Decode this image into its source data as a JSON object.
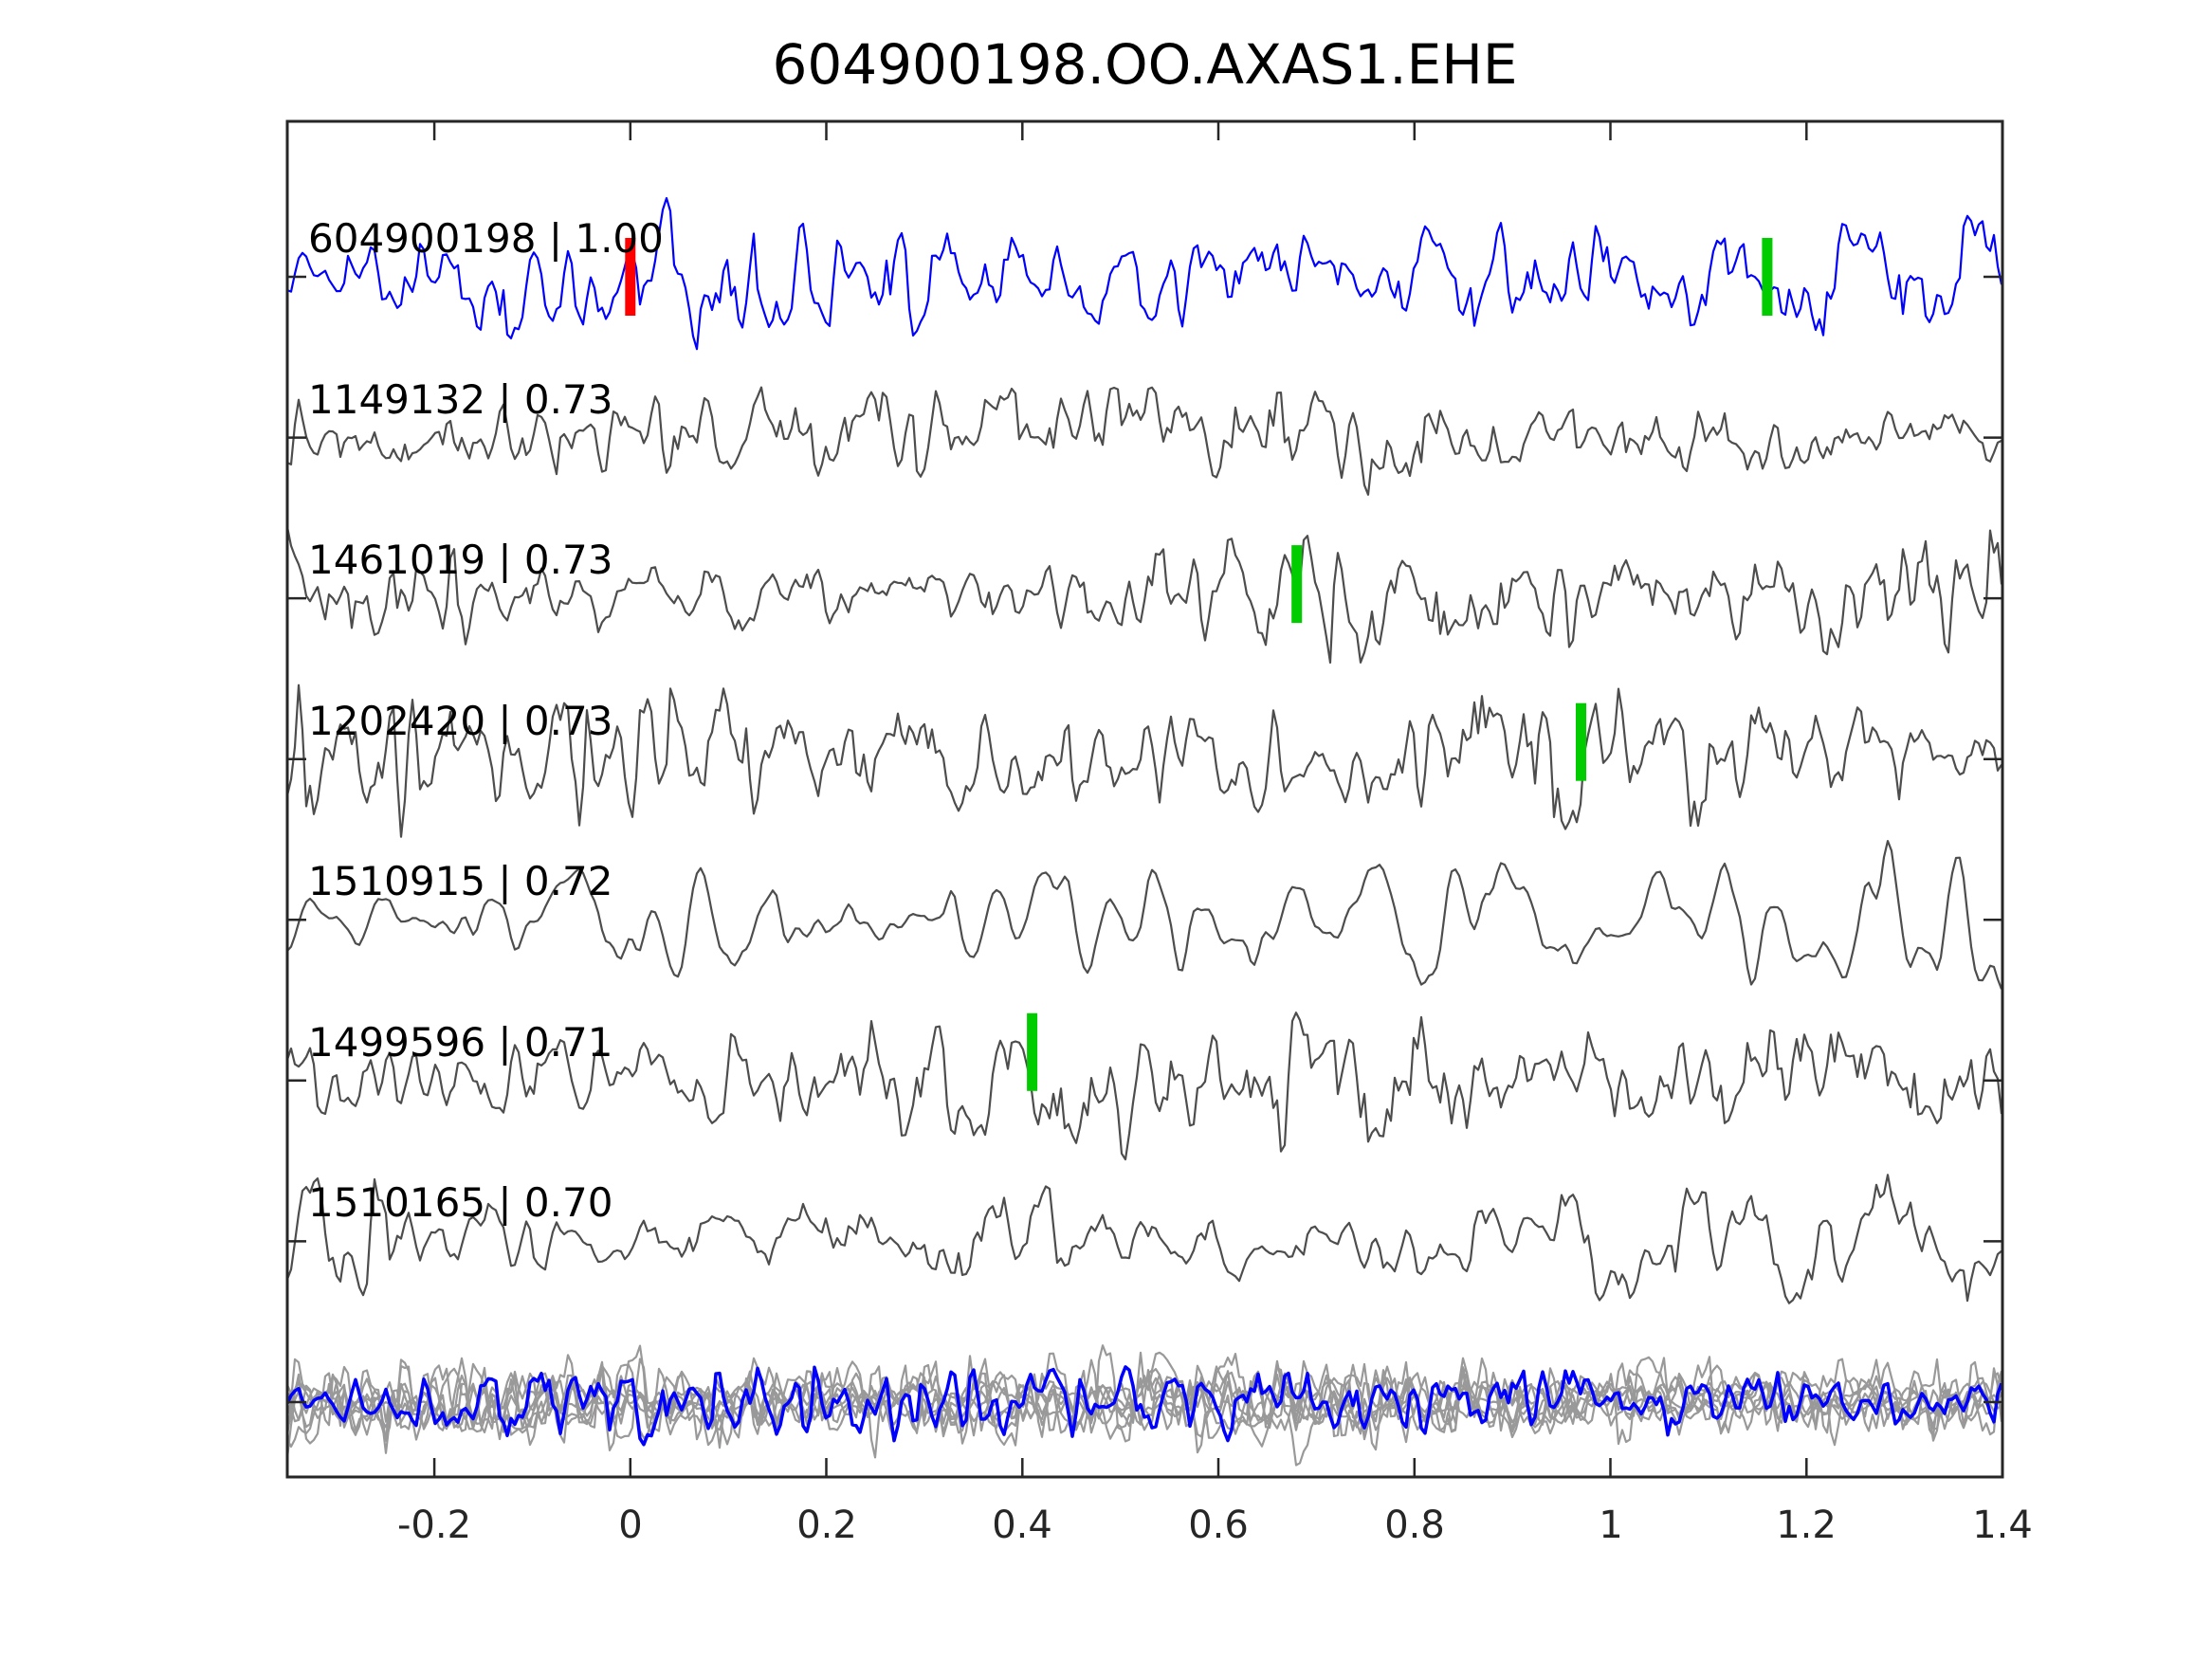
{
  "title": "604900198.OO.AXAS1.EHE",
  "colors": {
    "background": "#ffffff",
    "frame": "#262626",
    "template_trace_blue": "#0000ff",
    "candidate_trace_gray": "#4d4d4d",
    "stack_trace_gray": "#999999",
    "stack_highlight_blue": "#0000ff",
    "pick_marker_green": "#00cc00",
    "pick_marker_red": "#ff0000",
    "text": "#000000"
  },
  "chart_data": {
    "type": "line",
    "subtype": "seismic-waveform-correlation-panel",
    "title": "604900198.OO.AXAS1.EHE",
    "xlabel": "",
    "ylabel": "",
    "grid": false,
    "legend": "none",
    "xlim": [
      -0.35,
      1.4
    ],
    "xtick_values": [
      -0.2,
      0,
      0.2,
      0.4,
      0.6,
      0.8,
      1,
      1.2,
      1.4
    ],
    "xtick_labels": [
      "-0.2",
      "0",
      "0.2",
      "0.4",
      "0.6",
      "0.8",
      "1",
      "1.2",
      "1.4"
    ],
    "series": [
      {
        "label": "604900198 | 1.00",
        "event_id": "604900198",
        "correlation": 1.0,
        "row": 0,
        "color": "#0000ff",
        "seed": 101,
        "cycles": 140,
        "amp": 52,
        "amp2": 26,
        "c2": 2.6,
        "markers": [
          {
            "x": 0.0,
            "color": "#ff0000",
            "dy": 0
          },
          {
            "x": 1.16,
            "color": "#00cc00",
            "dy": 0
          }
        ]
      },
      {
        "label": "1149132 | 0.73",
        "event_id": "1149132",
        "correlation": 0.73,
        "row": 1,
        "color": "#4d4d4d",
        "seed": 202,
        "cycles": 135,
        "amp": 48,
        "amp2": 26,
        "c2": 2.6,
        "markers": []
      },
      {
        "label": "1461019 | 0.73",
        "event_id": "1461019",
        "correlation": 0.73,
        "row": 2,
        "color": "#4d4d4d",
        "seed": 303,
        "cycles": 155,
        "amp": 58,
        "amp2": 26,
        "c2": 2.6,
        "markers": [
          {
            "x": 0.68,
            "color": "#00cc00",
            "dy": -15
          }
        ]
      },
      {
        "label": "1202420 | 0.73",
        "event_id": "1202420",
        "correlation": 0.73,
        "row": 3,
        "color": "#4d4d4d",
        "seed": 404,
        "cycles": 165,
        "amp": 55,
        "amp2": 24,
        "c2": 2.6,
        "markers": [
          {
            "x": 0.97,
            "color": "#00cc00",
            "dy": -18
          }
        ]
      },
      {
        "label": "1510915 | 0.72",
        "event_id": "1510915",
        "correlation": 0.72,
        "row": 4,
        "color": "#4d4d4d",
        "seed": 505,
        "cycles": 75,
        "amp": 60,
        "amp2": 18,
        "c2": 2.2,
        "markers": []
      },
      {
        "label": "1499596 | 0.71",
        "event_id": "1499596",
        "correlation": 0.71,
        "row": 5,
        "color": "#4d4d4d",
        "seed": 606,
        "cycles": 150,
        "amp": 58,
        "amp2": 26,
        "c2": 2.6,
        "markers": [
          {
            "x": 0.41,
            "color": "#00cc00",
            "dy": -30
          }
        ]
      },
      {
        "label": "1510165 | 0.70",
        "event_id": "1510165",
        "correlation": 0.7,
        "row": 6,
        "color": "#4d4d4d",
        "seed": 707,
        "cycles": 115,
        "amp": 55,
        "amp2": 24,
        "c2": 2.6,
        "markers": []
      }
    ],
    "stack_row": {
      "row": 7,
      "n_gray_traces": 8,
      "gray_color": "#999999",
      "highlight_color": "#0000ff",
      "seed": 900,
      "cycles": 175,
      "amp": 40,
      "amp2": 18,
      "c2": 2.4
    }
  }
}
